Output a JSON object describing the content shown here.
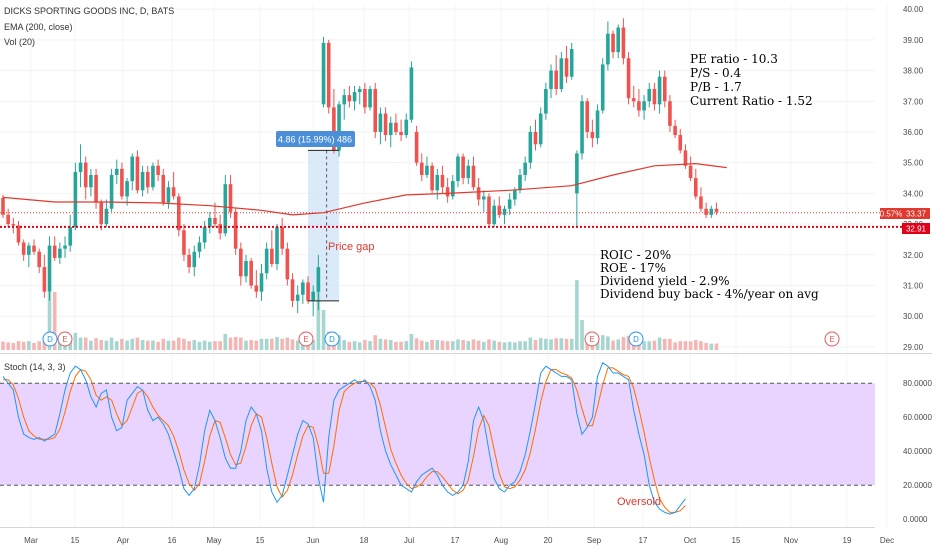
{
  "header": {
    "symbol_line": "DICKS SPORTING GOODS INC, D, BATS",
    "ema_line": "EMA (200, close)",
    "vol_line": "Vol (20)",
    "stoch_line": "Stoch (14, 3, 3)"
  },
  "annotations": {
    "pe": "PE ratio - 10.3",
    "ps": "P/S - 0.4",
    "pb": "P/B - 1.7",
    "cr": "Current Ratio - 1.52",
    "roic": "ROIC - 20%",
    "roe": "ROE - 17%",
    "div": "Dividend yield - 2.9%",
    "buyback": "Dividend buy back - 4%/year on avg",
    "price_gap": "Price gap",
    "measure": "4.86 (15.99%) 486",
    "oversold": "Oversold"
  },
  "badges": {
    "pct": "0.57%",
    "last": "33.37",
    "level": "32.91"
  },
  "colors": {
    "up": "#26a69a",
    "down": "#ef5350",
    "ema": "#e0392f",
    "k_line": "#2196f3",
    "d_line": "#ff6d00",
    "stoch_band": "#e5ccff",
    "measure_box": "#4a8fd8",
    "gap_fill": "#cfe3f7"
  },
  "events": [
    "D",
    "E",
    "E",
    "D",
    "E",
    "D",
    "E"
  ],
  "chart_data": [
    {
      "type": "candlestick",
      "title": "DICKS SPORTING GOODS INC, D, BATS",
      "y_ticks": [
        "40.00",
        "39.00",
        "38.00",
        "37.00",
        "36.00",
        "35.00",
        "34.00",
        "33.00",
        "32.00",
        "31.00",
        "30.00",
        "29.00"
      ],
      "x_ticks": [
        "Mar",
        "15",
        "Apr",
        "16",
        "May",
        "15",
        "Jun",
        "18",
        "Jul",
        "17",
        "Aug",
        "20",
        "Sep",
        "17",
        "Oct",
        "15",
        "Nov",
        "19",
        "Dec"
      ],
      "ylim": [
        28.9,
        40.2
      ],
      "horizontal_line": 32.91,
      "last_price": 33.37,
      "ema200": [
        {
          "x": 0,
          "y": 33.87
        },
        {
          "x": 10,
          "y": 33.72
        },
        {
          "x": 20,
          "y": 33.72
        },
        {
          "x": 30,
          "y": 33.69
        },
        {
          "x": 40,
          "y": 33.6
        },
        {
          "x": 50,
          "y": 33.45
        },
        {
          "x": 56,
          "y": 33.3
        },
        {
          "x": 62,
          "y": 33.37
        },
        {
          "x": 70,
          "y": 33.69
        },
        {
          "x": 78,
          "y": 33.95
        },
        {
          "x": 86,
          "y": 34.0
        },
        {
          "x": 98,
          "y": 34.1
        },
        {
          "x": 110,
          "y": 34.25
        },
        {
          "x": 118,
          "y": 34.6
        },
        {
          "x": 126,
          "y": 34.9
        },
        {
          "x": 134,
          "y": 34.97
        },
        {
          "x": 140,
          "y": 34.84
        }
      ],
      "candles": [
        [
          33.85,
          33.95,
          33.2,
          33.3
        ],
        [
          33.3,
          33.5,
          32.9,
          33.0
        ],
        [
          33.0,
          33.2,
          32.7,
          32.95
        ],
        [
          32.95,
          33.1,
          32.3,
          32.4
        ],
        [
          32.4,
          32.5,
          31.8,
          32.0
        ],
        [
          32.0,
          32.4,
          31.6,
          32.3
        ],
        [
          32.3,
          32.5,
          32.0,
          32.1
        ],
        [
          32.1,
          32.2,
          31.4,
          31.6
        ],
        [
          31.6,
          32.0,
          30.6,
          30.8
        ],
        [
          30.8,
          32.6,
          30.5,
          32.3
        ],
        [
          32.3,
          32.6,
          31.8,
          31.9
        ],
        [
          31.9,
          32.4,
          31.7,
          32.2
        ],
        [
          32.2,
          32.6,
          31.9,
          32.3
        ],
        [
          32.3,
          33.3,
          32.1,
          32.9
        ],
        [
          32.9,
          35.0,
          32.8,
          34.7
        ],
        [
          34.7,
          35.6,
          34.2,
          35.0
        ],
        [
          35.0,
          35.2,
          33.8,
          34.2
        ],
        [
          34.2,
          34.8,
          33.9,
          34.6
        ],
        [
          34.6,
          34.8,
          33.5,
          33.7
        ],
        [
          33.7,
          33.8,
          32.8,
          33.0
        ],
        [
          33.0,
          33.8,
          32.9,
          33.5
        ],
        [
          33.5,
          34.8,
          33.4,
          34.6
        ],
        [
          34.6,
          35.1,
          34.3,
          34.8
        ],
        [
          34.8,
          35.0,
          33.8,
          33.9
        ],
        [
          33.9,
          34.5,
          33.6,
          34.4
        ],
        [
          34.4,
          35.3,
          34.1,
          35.2
        ],
        [
          35.2,
          35.4,
          34.0,
          34.1
        ],
        [
          34.1,
          34.9,
          33.9,
          34.7
        ],
        [
          34.7,
          34.9,
          34.0,
          34.2
        ],
        [
          34.2,
          35.0,
          34.1,
          34.9
        ],
        [
          34.9,
          35.1,
          34.4,
          34.6
        ],
        [
          34.6,
          34.8,
          33.6,
          33.7
        ],
        [
          33.7,
          34.4,
          33.5,
          34.2
        ],
        [
          34.2,
          34.7,
          33.8,
          33.9
        ],
        [
          33.9,
          34.0,
          32.6,
          32.8
        ],
        [
          32.8,
          33.0,
          31.8,
          32.0
        ],
        [
          32.0,
          32.2,
          31.4,
          31.6
        ],
        [
          31.6,
          32.3,
          31.3,
          32.1
        ],
        [
          32.1,
          32.6,
          31.9,
          32.4
        ],
        [
          32.4,
          33.1,
          32.2,
          32.9
        ],
        [
          32.9,
          33.4,
          32.7,
          33.2
        ],
        [
          33.2,
          33.7,
          32.9,
          33.0
        ],
        [
          33.0,
          33.3,
          32.5,
          32.7
        ],
        [
          32.7,
          34.6,
          32.6,
          34.3
        ],
        [
          34.3,
          34.6,
          33.2,
          33.4
        ],
        [
          33.4,
          33.5,
          32.0,
          32.2
        ],
        [
          32.2,
          32.4,
          31.0,
          31.3
        ],
        [
          31.3,
          32.0,
          31.1,
          31.8
        ],
        [
          31.8,
          31.9,
          30.9,
          31.0
        ],
        [
          31.0,
          31.5,
          30.6,
          30.8
        ],
        [
          30.8,
          31.7,
          30.5,
          31.4
        ],
        [
          31.4,
          32.4,
          31.2,
          32.2
        ],
        [
          32.2,
          32.8,
          31.6,
          31.7
        ],
        [
          31.7,
          33.0,
          31.5,
          32.9
        ],
        [
          32.9,
          33.2,
          32.0,
          32.2
        ],
        [
          32.2,
          32.4,
          31.0,
          31.2
        ],
        [
          31.2,
          31.4,
          30.3,
          30.5
        ],
        [
          30.5,
          31.0,
          30.1,
          30.7
        ],
        [
          30.7,
          31.2,
          30.4,
          31.1
        ],
        [
          31.1,
          31.3,
          30.4,
          30.5
        ],
        [
          30.5,
          31.0,
          30.0,
          30.8
        ],
        [
          30.8,
          32.0,
          30.2,
          31.6
        ],
        [
          36.9,
          39.1,
          36.8,
          38.9
        ],
        [
          38.9,
          39.0,
          36.6,
          36.8
        ],
        [
          36.8,
          37.4,
          35.3,
          35.4
        ],
        [
          35.4,
          37.0,
          35.2,
          36.9
        ],
        [
          36.9,
          37.4,
          36.4,
          37.2
        ],
        [
          37.2,
          37.5,
          36.8,
          37.0
        ],
        [
          37.0,
          37.5,
          36.7,
          37.3
        ],
        [
          37.3,
          37.5,
          36.9,
          37.4
        ],
        [
          37.4,
          37.6,
          36.6,
          36.8
        ],
        [
          36.8,
          37.5,
          36.7,
          37.4
        ],
        [
          37.4,
          37.6,
          35.8,
          36.0
        ],
        [
          36.0,
          36.8,
          35.6,
          36.6
        ],
        [
          36.6,
          36.8,
          35.7,
          35.9
        ],
        [
          35.9,
          36.5,
          35.5,
          36.3
        ],
        [
          36.3,
          36.6,
          35.9,
          36.0
        ],
        [
          36.0,
          36.4,
          35.7,
          35.9
        ],
        [
          35.9,
          36.6,
          35.8,
          36.4
        ],
        [
          36.4,
          38.3,
          36.3,
          38.1
        ],
        [
          36.0,
          36.2,
          34.9,
          35.0
        ],
        [
          35.0,
          35.3,
          34.4,
          34.6
        ],
        [
          34.6,
          35.2,
          34.5,
          34.9
        ],
        [
          34.9,
          35.0,
          34.0,
          34.1
        ],
        [
          34.1,
          34.8,
          33.8,
          34.6
        ],
        [
          34.6,
          34.9,
          34.0,
          34.2
        ],
        [
          34.2,
          34.5,
          33.7,
          33.9
        ],
        [
          33.9,
          34.6,
          33.8,
          34.4
        ],
        [
          34.4,
          35.3,
          34.2,
          35.2
        ],
        [
          35.2,
          35.3,
          34.3,
          34.5
        ],
        [
          34.5,
          35.1,
          34.3,
          34.9
        ],
        [
          34.9,
          35.2,
          34.1,
          34.2
        ],
        [
          34.2,
          34.5,
          33.6,
          33.8
        ],
        [
          33.8,
          34.1,
          33.4,
          33.9
        ],
        [
          33.9,
          34.0,
          32.9,
          33.0
        ],
        [
          33.0,
          33.8,
          32.9,
          33.6
        ],
        [
          33.6,
          33.9,
          33.2,
          33.3
        ],
        [
          33.3,
          33.6,
          33.0,
          33.5
        ],
        [
          33.5,
          34.0,
          33.3,
          33.8
        ],
        [
          33.8,
          34.2,
          33.6,
          34.1
        ],
        [
          34.1,
          34.8,
          34.0,
          34.6
        ],
        [
          34.6,
          35.2,
          34.4,
          35.0
        ],
        [
          35.0,
          36.2,
          34.8,
          36.0
        ],
        [
          36.0,
          36.4,
          35.4,
          35.6
        ],
        [
          35.6,
          36.8,
          35.5,
          36.6
        ],
        [
          36.6,
          37.6,
          36.4,
          37.4
        ],
        [
          37.4,
          38.2,
          37.1,
          38.0
        ],
        [
          38.0,
          38.5,
          37.2,
          37.4
        ],
        [
          37.4,
          38.6,
          37.3,
          38.4
        ],
        [
          38.4,
          38.8,
          37.6,
          37.8
        ],
        [
          37.8,
          38.9,
          37.7,
          38.7
        ],
        [
          34.0,
          35.4,
          32.9,
          35.3
        ],
        [
          35.3,
          37.2,
          35.1,
          37.0
        ],
        [
          37.0,
          37.1,
          35.8,
          36.0
        ],
        [
          36.0,
          36.4,
          35.5,
          35.8
        ],
        [
          35.8,
          36.9,
          35.6,
          36.7
        ],
        [
          36.7,
          38.4,
          36.6,
          38.2
        ],
        [
          38.2,
          39.6,
          38.0,
          39.2
        ],
        [
          39.2,
          39.3,
          38.4,
          38.6
        ],
        [
          38.6,
          39.5,
          38.4,
          39.4
        ],
        [
          39.4,
          39.7,
          38.2,
          38.4
        ],
        [
          38.4,
          38.6,
          36.9,
          37.1
        ],
        [
          37.1,
          37.5,
          36.8,
          37.0
        ],
        [
          37.0,
          37.4,
          36.5,
          36.7
        ],
        [
          36.7,
          37.2,
          36.4,
          37.0
        ],
        [
          37.0,
          37.6,
          36.8,
          37.4
        ],
        [
          37.4,
          37.6,
          36.7,
          36.9
        ],
        [
          36.9,
          38.0,
          36.6,
          37.8
        ],
        [
          37.8,
          38.0,
          36.8,
          37.0
        ],
        [
          37.0,
          37.2,
          36.0,
          36.2
        ],
        [
          36.2,
          36.4,
          35.8,
          35.9
        ],
        [
          35.9,
          36.1,
          35.3,
          35.4
        ],
        [
          35.4,
          35.6,
          34.8,
          34.9
        ],
        [
          34.9,
          35.2,
          34.4,
          34.5
        ],
        [
          34.5,
          34.8,
          33.8,
          33.9
        ],
        [
          33.9,
          34.2,
          33.4,
          33.5
        ],
        [
          33.5,
          33.7,
          33.2,
          33.3
        ],
        [
          33.3,
          33.6,
          33.2,
          33.5
        ],
        [
          33.5,
          33.7,
          33.3,
          33.4
        ]
      ]
    },
    {
      "type": "line",
      "title": "Stoch (14, 3, 3)",
      "y_ticks": [
        "80.0000",
        "60.0000",
        "40.0000",
        "20.0000",
        "0.0000"
      ],
      "ylim": [
        -4,
        96
      ],
      "band": [
        20,
        80
      ],
      "series": [
        {
          "key": "k",
          "values": [
            84,
            80,
            76,
            60,
            50,
            48,
            47,
            48,
            46,
            48,
            50,
            62,
            76,
            86,
            90,
            88,
            82,
            72,
            66,
            74,
            76,
            60,
            52,
            54,
            70,
            74,
            78,
            76,
            64,
            58,
            60,
            56,
            50,
            40,
            30,
            18,
            14,
            18,
            32,
            52,
            64,
            58,
            48,
            36,
            30,
            30,
            40,
            58,
            66,
            62,
            52,
            30,
            16,
            10,
            14,
            26,
            38,
            50,
            58,
            56,
            48,
            24,
            10,
            48,
            70,
            76,
            78,
            80,
            82,
            80,
            82,
            78,
            70,
            52,
            40,
            32,
            26,
            20,
            18,
            16,
            22,
            26,
            28,
            30,
            26,
            20,
            16,
            14,
            16,
            20,
            34,
            58,
            66,
            58,
            40,
            24,
            18,
            16,
            20,
            22,
            28,
            38,
            52,
            68,
            86,
            90,
            88,
            86,
            84,
            84,
            82,
            62,
            50,
            54,
            60,
            84,
            92,
            90,
            86,
            86,
            84,
            82,
            64,
            50,
            38,
            20,
            10,
            6,
            4,
            3,
            4,
            8,
            12
          ]
        },
        {
          "key": "d",
          "values": [
            82,
            82,
            79,
            71,
            60,
            52,
            49,
            47,
            47,
            47,
            48,
            53,
            63,
            75,
            84,
            88,
            87,
            82,
            73,
            70,
            72,
            70,
            62,
            55,
            58,
            66,
            74,
            76,
            72,
            66,
            61,
            58,
            55,
            49,
            40,
            29,
            21,
            17,
            21,
            34,
            49,
            58,
            57,
            48,
            38,
            32,
            33,
            43,
            55,
            62,
            60,
            48,
            33,
            19,
            13,
            17,
            26,
            38,
            49,
            55,
            54,
            43,
            27,
            27,
            43,
            64,
            75,
            78,
            80,
            81,
            81,
            80,
            77,
            67,
            54,
            41,
            33,
            26,
            21,
            18,
            19,
            21,
            25,
            28,
            28,
            25,
            21,
            17,
            15,
            17,
            23,
            37,
            53,
            61,
            55,
            41,
            27,
            19,
            18,
            19,
            23,
            29,
            39,
            53,
            69,
            81,
            88,
            88,
            86,
            85,
            83,
            76,
            65,
            55,
            55,
            66,
            79,
            89,
            89,
            87,
            85,
            84,
            77,
            65,
            51,
            36,
            23,
            12,
            7,
            4,
            4,
            5,
            8
          ]
        }
      ]
    }
  ]
}
